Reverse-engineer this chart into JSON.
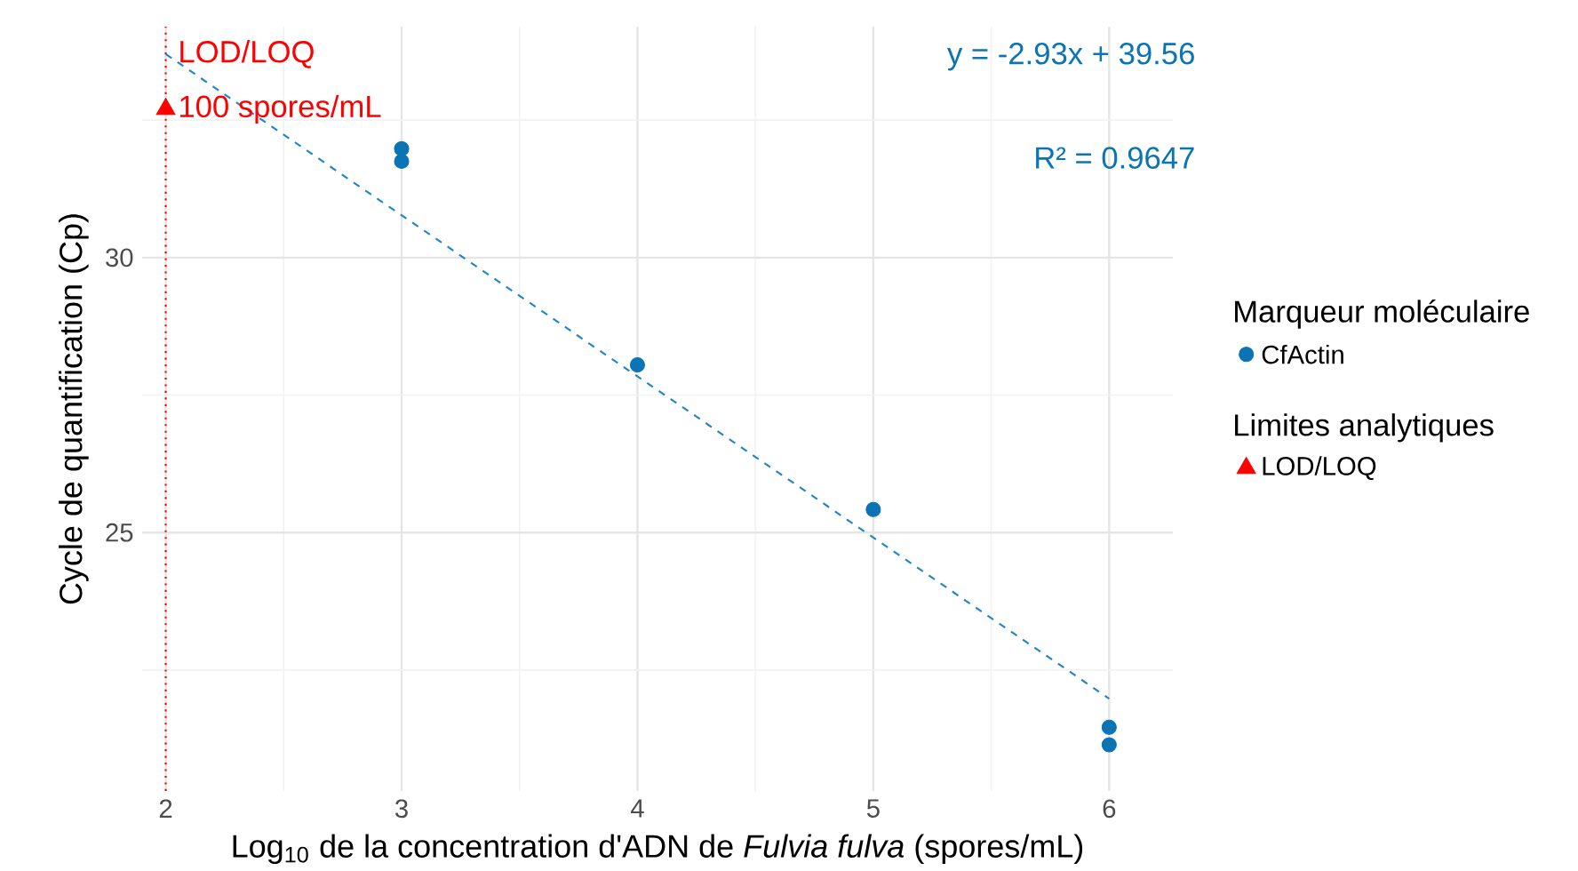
{
  "chart_data": {
    "type": "scatter",
    "xlabel": "Log$_{10}$ de la concentration d'ADN de *Fulvia fulva* (spores/mL)",
    "ylabel": "Cycle de quantification (Cp)",
    "legend_title": "Marqueur moléculaire",
    "series": [
      {
        "name": "CfActin",
        "color": "#0a74b4",
        "marker": "circle",
        "x": [
          3,
          3,
          4,
          5,
          6,
          6
        ],
        "values": [
          31.98,
          31.75,
          28.05,
          25.42,
          21.46,
          21.14
        ]
      },
      {
        "name": "LOD/LOQ",
        "color": "#ff0000",
        "marker": "triangle",
        "x": [
          2
        ],
        "values": [
          32.7
        ]
      },
      {
        "type": "line",
        "color": "#1f86c8",
        "line_style": "dashed",
        "marker": "none",
        "x": [
          2,
          6
        ],
        "values": [
          33.7,
          21.98
        ]
      }
    ],
    "annotations": [
      {
        "text": "LOD/LOQ",
        "x": 2,
        "y": 33.7
      },
      {
        "text": "100 spores/mL",
        "x": 2,
        "y": 32.7
      },
      "y = -2.93x + 39.56",
      "R² = 0.9647",
      "Limites analytiques"
    ],
    "ref_lines": [
      {
        "axis": "x",
        "value": 2,
        "color": "#ff0000",
        "line_style": "dotted"
      }
    ],
    "xlim": [
      1.9,
      6.27
    ],
    "ylim": [
      20.3,
      34.2
    ],
    "xticks": [
      2,
      3,
      4,
      5,
      6
    ],
    "yticks": [
      25,
      30
    ],
    "grid": true,
    "legend": "right"
  }
}
